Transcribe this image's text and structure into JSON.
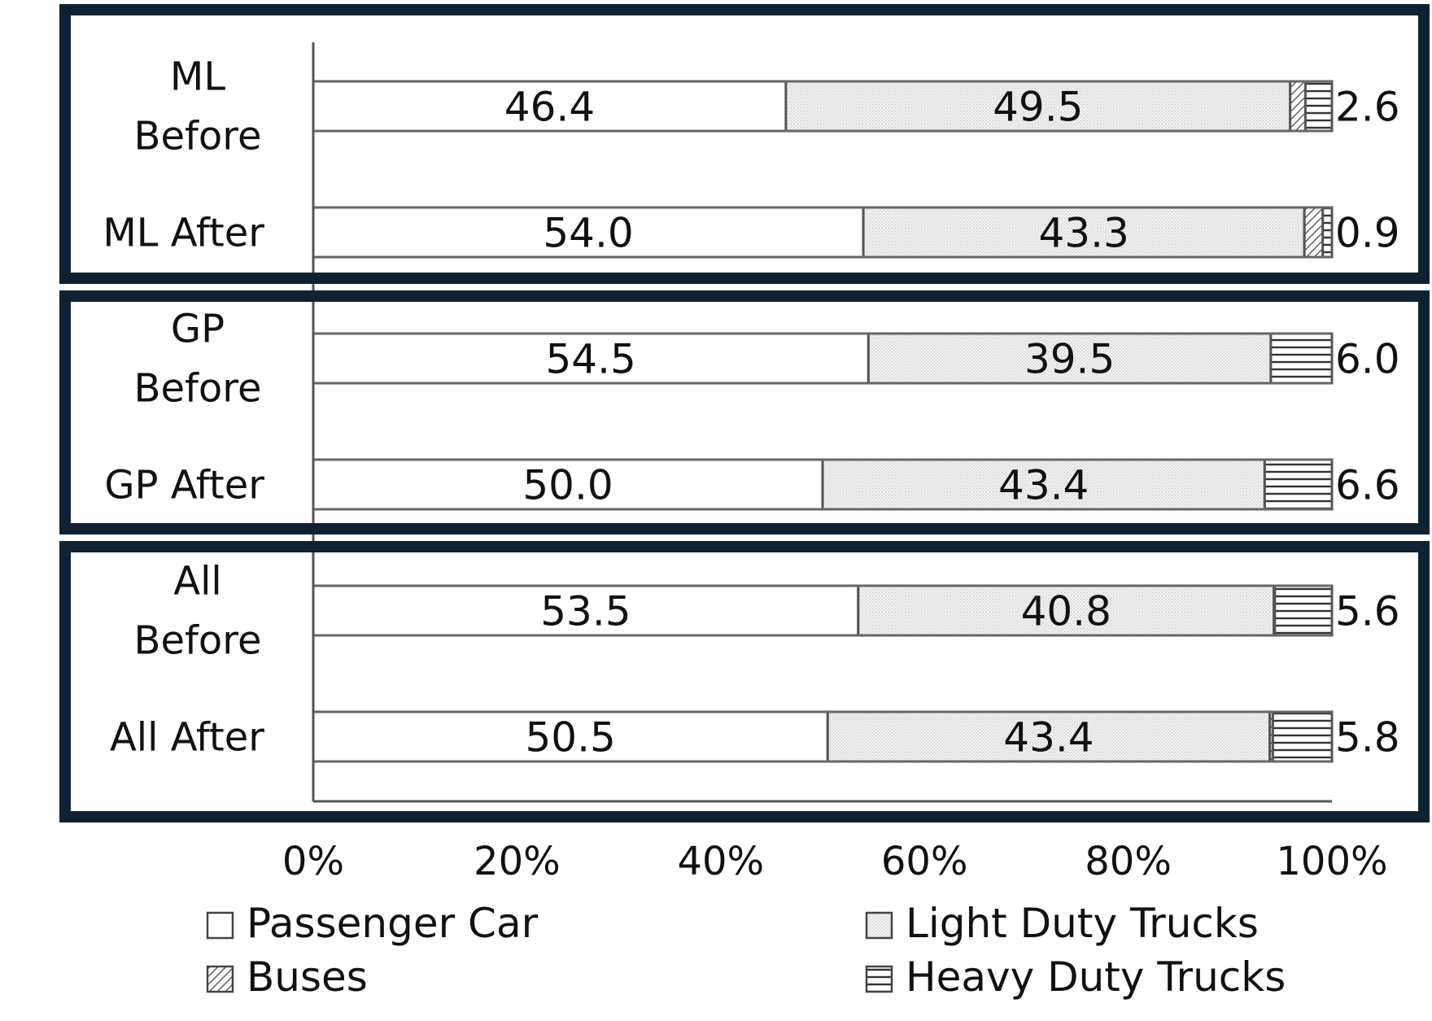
{
  "chart_data": {
    "type": "bar",
    "orientation": "horizontal",
    "stacked": true,
    "categories": [
      [
        "ML",
        "Before"
      ],
      [
        "ML After"
      ],
      [
        "GP",
        "Before"
      ],
      [
        "GP After"
      ],
      [
        "All",
        "Before"
      ],
      [
        "All After"
      ]
    ],
    "series": [
      {
        "name": "Passenger Car",
        "values": [
          46.4,
          54.0,
          54.5,
          50.0,
          53.5,
          50.5
        ],
        "pattern": "solid",
        "color": "#ffffff"
      },
      {
        "name": "Light Duty Trucks",
        "values": [
          49.5,
          43.3,
          39.5,
          43.4,
          40.8,
          43.4
        ],
        "pattern": "dots",
        "color": "#ededed"
      },
      {
        "name": "Buses",
        "values": [
          1.5,
          1.8,
          0.0,
          0.0,
          0.1,
          0.3
        ],
        "pattern": "diagonal"
      },
      {
        "name": "Heavy Duty Trucks",
        "values": [
          2.6,
          0.9,
          6.0,
          6.6,
          5.6,
          5.8
        ],
        "pattern": "horizontal"
      }
    ],
    "segment_labels": [
      [
        "46.4",
        "49.5"
      ],
      [
        "54.0",
        "43.3"
      ],
      [
        "54.5",
        "39.5"
      ],
      [
        "50.0",
        "43.4"
      ],
      [
        "53.5",
        "40.8"
      ],
      [
        "50.5",
        "43.4"
      ]
    ],
    "end_labels": [
      "2.6",
      "0.9",
      "6.0",
      "6.6",
      "5.6",
      "5.8"
    ],
    "xlim": [
      0,
      100
    ],
    "xticks": [
      "0%",
      "20%",
      "40%",
      "60%",
      "80%",
      "100%"
    ],
    "groups": [
      {
        "name": "ML",
        "rows": [
          0,
          1
        ]
      },
      {
        "name": "GP",
        "rows": [
          2,
          3
        ]
      },
      {
        "name": "All",
        "rows": [
          4,
          5
        ]
      }
    ],
    "legend": {
      "placement": "bottom",
      "items": [
        {
          "label": "Passenger Car",
          "pattern": "solid"
        },
        {
          "label": "Light Duty Trucks",
          "pattern": "dots"
        },
        {
          "label": "Buses",
          "pattern": "diagonal"
        },
        {
          "label": "Heavy Duty Trucks",
          "pattern": "horizontal"
        }
      ]
    },
    "colors": {
      "group_box": "#0f2233",
      "bar_stroke": "#555555",
      "axis": "#555555"
    }
  }
}
